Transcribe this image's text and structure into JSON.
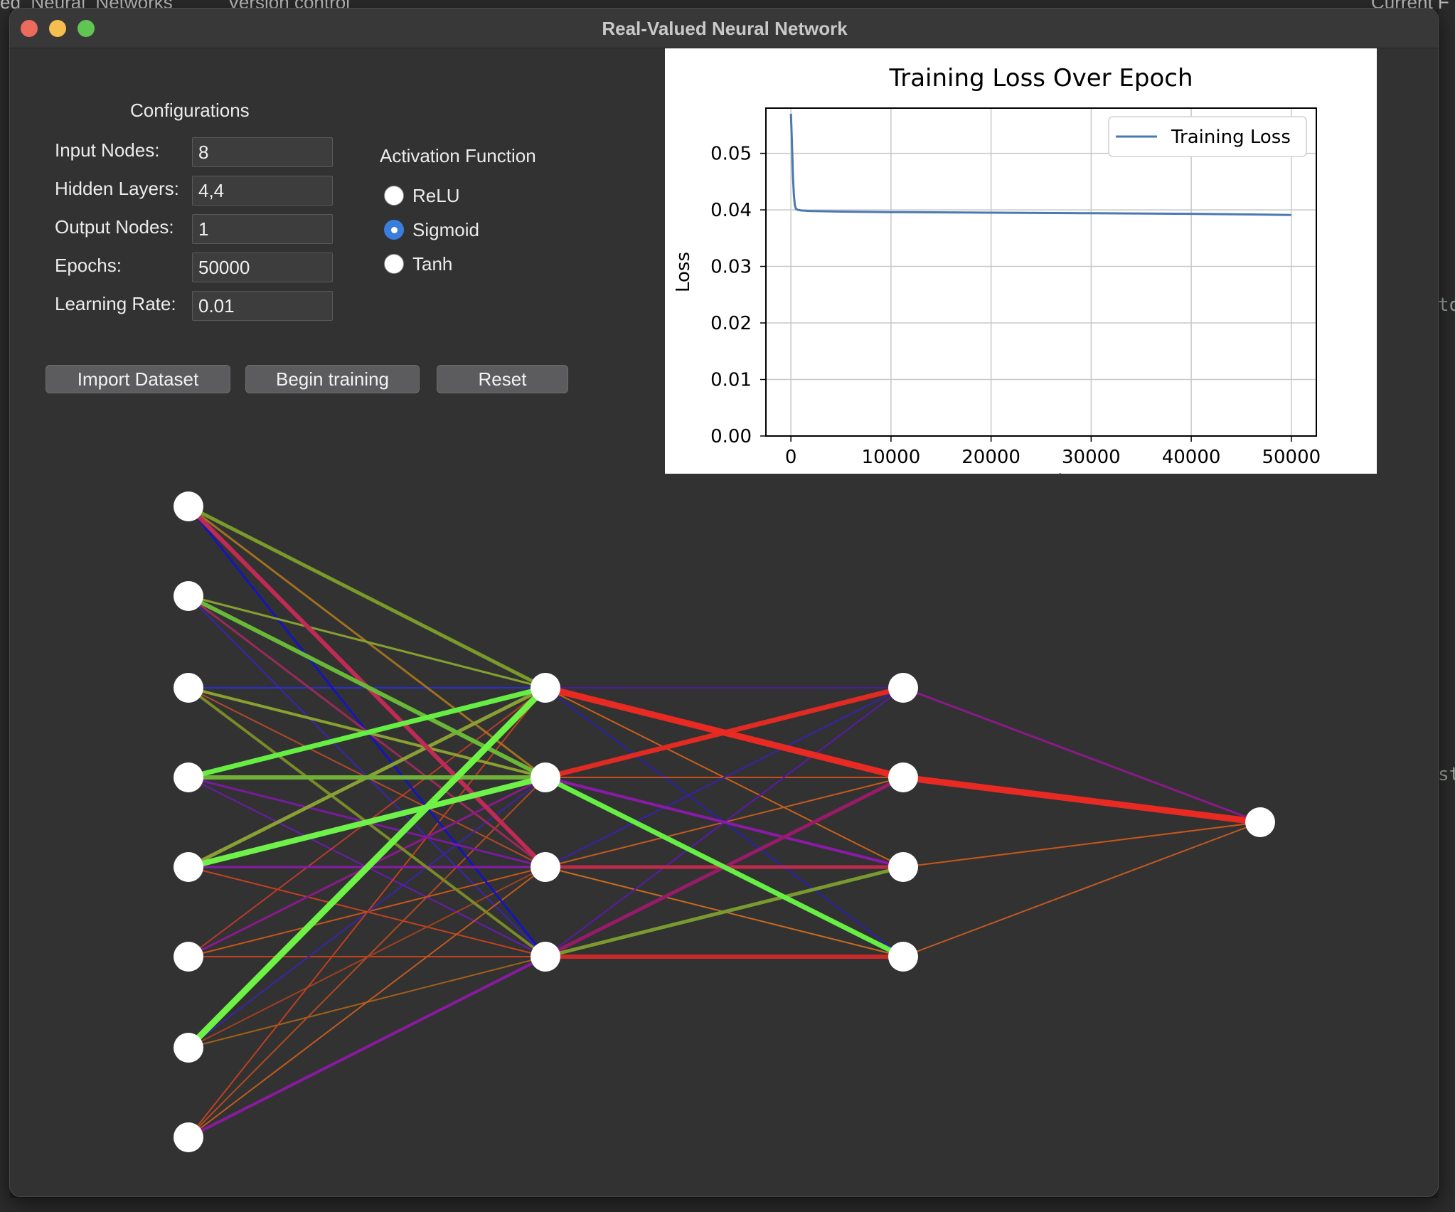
{
  "window": {
    "title": "Real-Valued Neural Network"
  },
  "background": {
    "topbar": [
      "ed_Neural_Networks",
      "Version control",
      "Current F"
    ],
    "side_glyphs_right": [
      "to",
      "st"
    ]
  },
  "config": {
    "heading": "Configurations",
    "fields": [
      {
        "label": "Input Nodes:",
        "value": "8"
      },
      {
        "label": "Hidden Layers:",
        "value": "4,4"
      },
      {
        "label": "Output Nodes:",
        "value": "1"
      },
      {
        "label": "Epochs:",
        "value": "50000"
      },
      {
        "label": "Learning Rate:",
        "value": "0.01"
      }
    ]
  },
  "activation": {
    "heading": "Activation Function",
    "options": [
      "ReLU",
      "Sigmoid",
      "Tanh"
    ],
    "selected": "Sigmoid"
  },
  "buttons": {
    "import": "Import Dataset",
    "train": "Begin training",
    "reset": "Reset"
  },
  "chart_data": {
    "type": "line",
    "title": "Training Loss Over Epoch",
    "xlabel": "Epoch",
    "ylabel": "Loss",
    "xlim": [
      -2500,
      52500
    ],
    "ylim": [
      0,
      0.058
    ],
    "xticks": [
      0,
      10000,
      20000,
      30000,
      40000,
      50000
    ],
    "xtick_labels": [
      "0",
      "10000",
      "20000",
      "30000",
      "40000",
      "50000"
    ],
    "yticks": [
      0,
      0.01,
      0.02,
      0.03,
      0.04,
      0.05
    ],
    "ytick_labels": [
      "0.00",
      "0.01",
      "0.02",
      "0.03",
      "0.04",
      "0.05"
    ],
    "grid": true,
    "legend_position": "top-right",
    "series": [
      {
        "name": "Training Loss",
        "color": "#4a78b0",
        "x": [
          0,
          100,
          200,
          300,
          400,
          500,
          700,
          1000,
          2000,
          5000,
          10000,
          20000,
          30000,
          40000,
          50000
        ],
        "y": [
          0.057,
          0.052,
          0.046,
          0.0425,
          0.0408,
          0.0402,
          0.04,
          0.0399,
          0.0398,
          0.0397,
          0.0396,
          0.0395,
          0.0394,
          0.0393,
          0.0391
        ]
      }
    ]
  },
  "network": {
    "layers": [
      8,
      4,
      4,
      1
    ],
    "node_color": "#ffffff",
    "edges": [
      {
        "from": [
          0,
          0
        ],
        "to": [
          1,
          0
        ],
        "color": "#7a9a2a",
        "w": 5
      },
      {
        "from": [
          0,
          0
        ],
        "to": [
          1,
          1
        ],
        "color": "#a07020",
        "w": 3
      },
      {
        "from": [
          0,
          0
        ],
        "to": [
          1,
          2
        ],
        "color": "#c02a55",
        "w": 6
      },
      {
        "from": [
          0,
          0
        ],
        "to": [
          1,
          3
        ],
        "color": "#1515c0",
        "w": 3
      },
      {
        "from": [
          0,
          1
        ],
        "to": [
          1,
          0
        ],
        "color": "#86a030",
        "w": 3
      },
      {
        "from": [
          0,
          1
        ],
        "to": [
          1,
          1
        ],
        "color": "#6ab838",
        "w": 6
      },
      {
        "from": [
          0,
          1
        ],
        "to": [
          1,
          2
        ],
        "color": "#9a2a5a",
        "w": 3
      },
      {
        "from": [
          0,
          1
        ],
        "to": [
          1,
          3
        ],
        "color": "#3a25b0",
        "w": 2
      },
      {
        "from": [
          0,
          2
        ],
        "to": [
          1,
          0
        ],
        "color": "#2a30d0",
        "w": 2
      },
      {
        "from": [
          0,
          2
        ],
        "to": [
          1,
          1
        ],
        "color": "#8aa030",
        "w": 4
      },
      {
        "from": [
          0,
          2
        ],
        "to": [
          1,
          2
        ],
        "color": "#b04a2a",
        "w": 2
      },
      {
        "from": [
          0,
          2
        ],
        "to": [
          1,
          3
        ],
        "color": "#7a8a28",
        "w": 4
      },
      {
        "from": [
          0,
          3
        ],
        "to": [
          1,
          0
        ],
        "color": "#66ee44",
        "w": 7
      },
      {
        "from": [
          0,
          3
        ],
        "to": [
          1,
          1
        ],
        "color": "#70b038",
        "w": 6
      },
      {
        "from": [
          0,
          3
        ],
        "to": [
          1,
          2
        ],
        "color": "#7a1aa0",
        "w": 3
      },
      {
        "from": [
          0,
          3
        ],
        "to": [
          1,
          3
        ],
        "color": "#6a1ab0",
        "w": 2
      },
      {
        "from": [
          0,
          4
        ],
        "to": [
          1,
          0
        ],
        "color": "#8aa035",
        "w": 5
      },
      {
        "from": [
          0,
          4
        ],
        "to": [
          1,
          1
        ],
        "color": "#6ef24a",
        "w": 8
      },
      {
        "from": [
          0,
          4
        ],
        "to": [
          1,
          2
        ],
        "color": "#8a1aa8",
        "w": 3
      },
      {
        "from": [
          0,
          4
        ],
        "to": [
          1,
          3
        ],
        "color": "#c84020",
        "w": 2
      },
      {
        "from": [
          0,
          5
        ],
        "to": [
          1,
          0
        ],
        "color": "#b83a2a",
        "w": 2
      },
      {
        "from": [
          0,
          5
        ],
        "to": [
          1,
          1
        ],
        "color": "#8a1a8a",
        "w": 3
      },
      {
        "from": [
          0,
          5
        ],
        "to": [
          1,
          2
        ],
        "color": "#c8561a",
        "w": 2
      },
      {
        "from": [
          0,
          5
        ],
        "to": [
          1,
          3
        ],
        "color": "#c4401e",
        "w": 2
      },
      {
        "from": [
          0,
          6
        ],
        "to": [
          1,
          0
        ],
        "color": "#6ef245",
        "w": 9
      },
      {
        "from": [
          0,
          6
        ],
        "to": [
          1,
          1
        ],
        "color": "#3a25a8",
        "w": 2
      },
      {
        "from": [
          0,
          6
        ],
        "to": [
          1,
          2
        ],
        "color": "#a04020",
        "w": 2
      },
      {
        "from": [
          0,
          6
        ],
        "to": [
          1,
          3
        ],
        "color": "#a0601a",
        "w": 2
      },
      {
        "from": [
          0,
          7
        ],
        "to": [
          1,
          0
        ],
        "color": "#c04020",
        "w": 2
      },
      {
        "from": [
          0,
          7
        ],
        "to": [
          1,
          1
        ],
        "color": "#b04a22",
        "w": 2
      },
      {
        "from": [
          0,
          7
        ],
        "to": [
          1,
          2
        ],
        "color": "#c05a20",
        "w": 2
      },
      {
        "from": [
          0,
          7
        ],
        "to": [
          1,
          3
        ],
        "color": "#8a1aa0",
        "w": 4
      },
      {
        "from": [
          1,
          0
        ],
        "to": [
          2,
          0
        ],
        "color": "#4a1aa0",
        "w": 2
      },
      {
        "from": [
          1,
          0
        ],
        "to": [
          2,
          1
        ],
        "color": "#e82a22",
        "w": 9
      },
      {
        "from": [
          1,
          0
        ],
        "to": [
          2,
          2
        ],
        "color": "#c8601a",
        "w": 2
      },
      {
        "from": [
          1,
          0
        ],
        "to": [
          2,
          3
        ],
        "color": "#2a20b0",
        "w": 2
      },
      {
        "from": [
          1,
          1
        ],
        "to": [
          2,
          0
        ],
        "color": "#e02a22",
        "w": 7
      },
      {
        "from": [
          1,
          1
        ],
        "to": [
          2,
          1
        ],
        "color": "#d04a1a",
        "w": 2
      },
      {
        "from": [
          1,
          1
        ],
        "to": [
          2,
          2
        ],
        "color": "#8a1aa8",
        "w": 4
      },
      {
        "from": [
          1,
          1
        ],
        "to": [
          2,
          3
        ],
        "color": "#66ee44",
        "w": 7
      },
      {
        "from": [
          1,
          2
        ],
        "to": [
          2,
          0
        ],
        "color": "#3a20b0",
        "w": 2
      },
      {
        "from": [
          1,
          2
        ],
        "to": [
          2,
          1
        ],
        "color": "#c05a20",
        "w": 2
      },
      {
        "from": [
          1,
          2
        ],
        "to": [
          2,
          2
        ],
        "color": "#c02a4a",
        "w": 5
      },
      {
        "from": [
          1,
          2
        ],
        "to": [
          2,
          3
        ],
        "color": "#c86a20",
        "w": 2
      },
      {
        "from": [
          1,
          3
        ],
        "to": [
          2,
          0
        ],
        "color": "#5a1aa8",
        "w": 2
      },
      {
        "from": [
          1,
          3
        ],
        "to": [
          2,
          1
        ],
        "color": "#9a1a6a",
        "w": 5
      },
      {
        "from": [
          1,
          3
        ],
        "to": [
          2,
          2
        ],
        "color": "#7a9a30",
        "w": 5
      },
      {
        "from": [
          1,
          3
        ],
        "to": [
          2,
          3
        ],
        "color": "#c82a2a",
        "w": 6
      },
      {
        "from": [
          2,
          0
        ],
        "to": [
          3,
          0
        ],
        "color": "#8a1a8a",
        "w": 3
      },
      {
        "from": [
          2,
          1
        ],
        "to": [
          3,
          0
        ],
        "color": "#e82a22",
        "w": 9
      },
      {
        "from": [
          2,
          2
        ],
        "to": [
          3,
          0
        ],
        "color": "#c8561a",
        "w": 2
      },
      {
        "from": [
          2,
          3
        ],
        "to": [
          3,
          0
        ],
        "color": "#c05a22",
        "w": 2
      }
    ]
  }
}
